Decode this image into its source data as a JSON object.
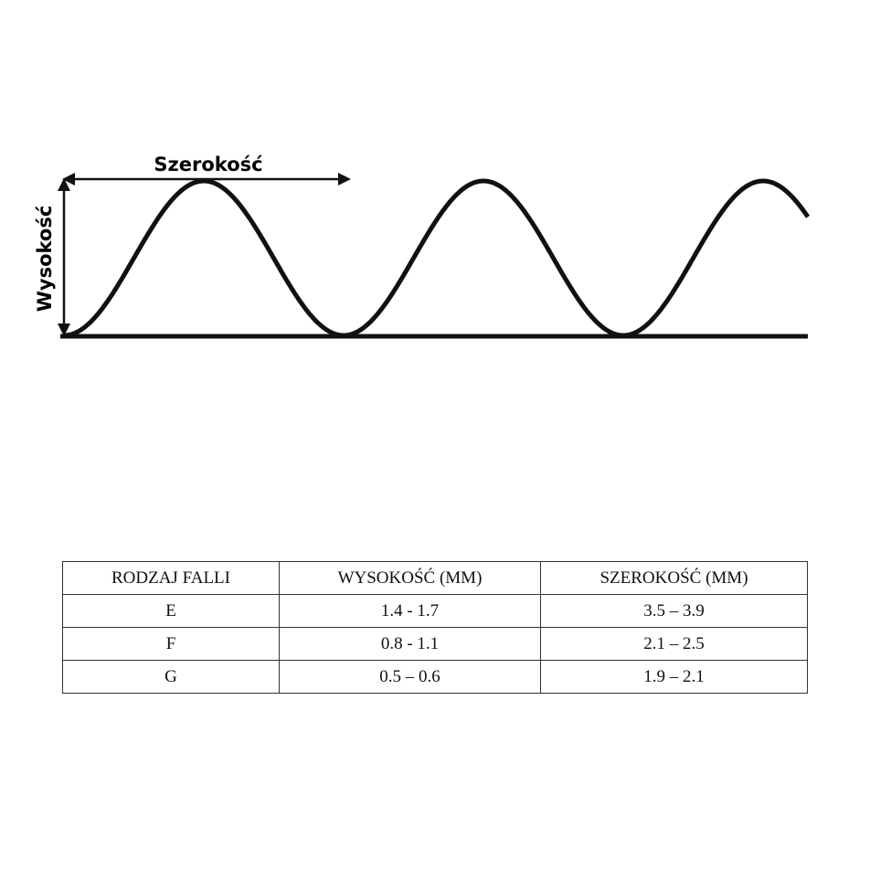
{
  "diagram": {
    "width_label": "Szerokość",
    "height_label": "Wysokość"
  },
  "table": {
    "headers": [
      "RODZAJ FALLI",
      "WYSOKOŚĆ (MM)",
      "SZEROKOŚĆ (MM)"
    ],
    "rows": [
      [
        "E",
        "1.4 - 1.7",
        "3.5 – 3.9"
      ],
      [
        "F",
        "0.8 - 1.1",
        "2.1 – 2.5"
      ],
      [
        "G",
        "0.5 – 0.6",
        "1.9 – 2.1"
      ]
    ]
  }
}
